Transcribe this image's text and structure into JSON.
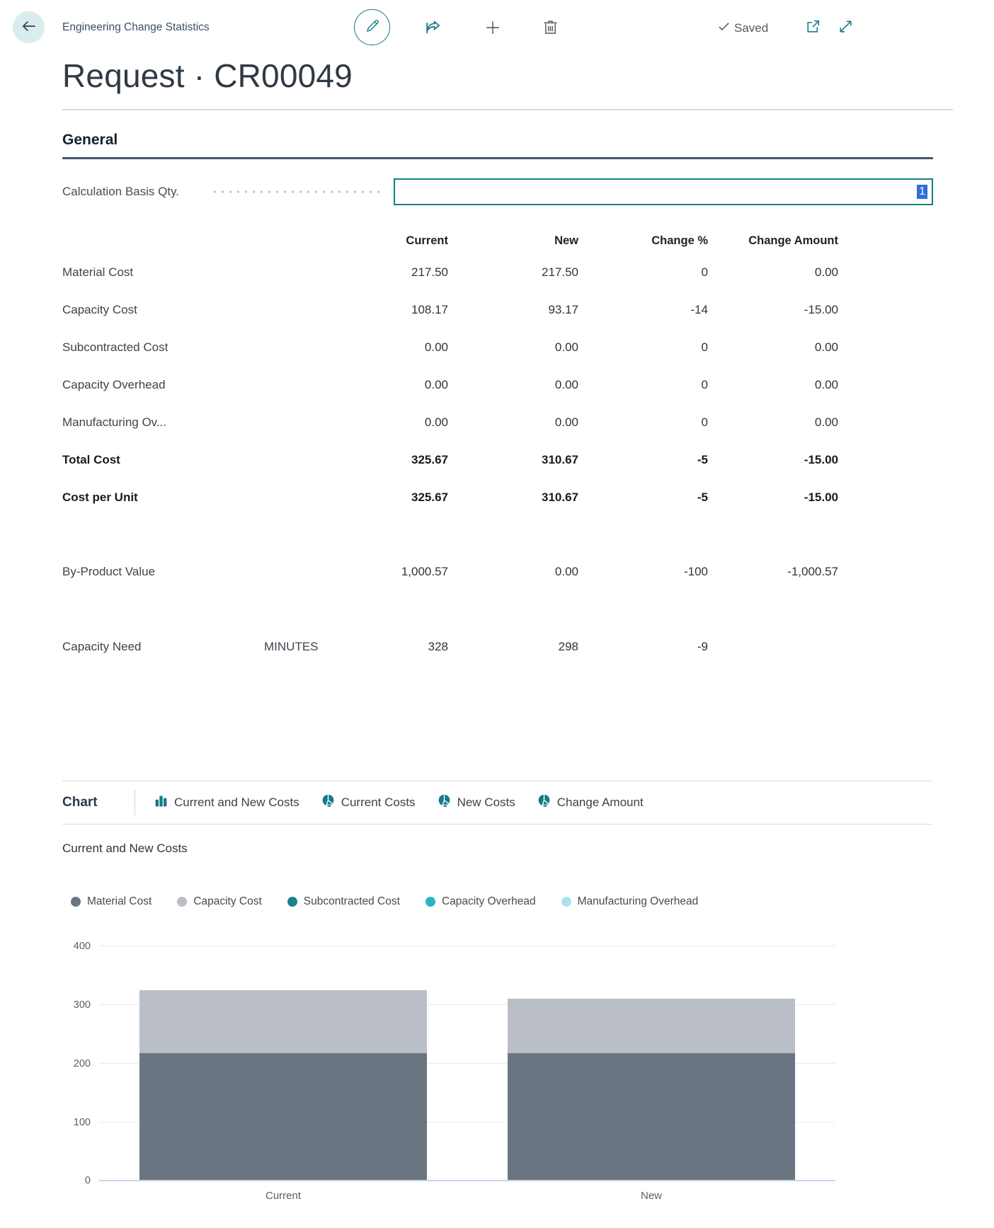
{
  "header": {
    "breadcrumb": "Engineering Change Statistics",
    "saved_label": "Saved",
    "icons": {
      "back": "arrow-left",
      "edit": "pencil",
      "share": "share-arrow",
      "add": "plus",
      "delete": "trash",
      "saved_check": "checkmark",
      "popout": "open-in-new-window",
      "expand": "fullscreen-diagonal-arrows"
    }
  },
  "page_title": "Request · CR00049",
  "general": {
    "section_title": "General",
    "field_label": "Calculation Basis Qty.",
    "field_value": "1"
  },
  "stats_table": {
    "columns": [
      "Current",
      "New",
      "Change %",
      "Change Amount"
    ],
    "rows": [
      {
        "label": "Material Cost",
        "unit": "",
        "current": "217.50",
        "new": "217.50",
        "change_pct": "0",
        "change_amount": "0.00",
        "bold": false
      },
      {
        "label": "Capacity Cost",
        "unit": "",
        "current": "108.17",
        "new": "93.17",
        "change_pct": "-14",
        "change_amount": "-15.00",
        "bold": false
      },
      {
        "label": "Subcontracted Cost",
        "unit": "",
        "current": "0.00",
        "new": "0.00",
        "change_pct": "0",
        "change_amount": "0.00",
        "bold": false
      },
      {
        "label": "Capacity Overhead",
        "unit": "",
        "current": "0.00",
        "new": "0.00",
        "change_pct": "0",
        "change_amount": "0.00",
        "bold": false
      },
      {
        "label": "Manufacturing Ov...",
        "unit": "",
        "current": "0.00",
        "new": "0.00",
        "change_pct": "0",
        "change_amount": "0.00",
        "bold": false
      },
      {
        "label": "Total Cost",
        "unit": "",
        "current": "325.67",
        "new": "310.67",
        "change_pct": "-5",
        "change_amount": "-15.00",
        "bold": true
      },
      {
        "label": "Cost per Unit",
        "unit": "",
        "current": "325.67",
        "new": "310.67",
        "change_pct": "-5",
        "change_amount": "-15.00",
        "bold": true
      },
      {
        "label": "By-Product Value",
        "unit": "",
        "current": "1,000.57",
        "new": "0.00",
        "change_pct": "-100",
        "change_amount": "-1,000.57",
        "bold": false
      },
      {
        "label": "Capacity Need",
        "unit": "MINUTES",
        "current": "328",
        "new": "298",
        "change_pct": "-9",
        "change_amount": "",
        "bold": false
      }
    ]
  },
  "chart_section": {
    "caption": "Chart",
    "tabs": [
      {
        "label": "Current and New Costs",
        "icon": "bar-chart"
      },
      {
        "label": "Current Costs",
        "icon": "pie-chart"
      },
      {
        "label": "New Costs",
        "icon": "pie-chart"
      },
      {
        "label": "Change Amount",
        "icon": "pie-chart"
      }
    ]
  },
  "chart_data": {
    "type": "bar",
    "stacked": true,
    "title": "Current and New Costs",
    "categories": [
      "Current",
      "New"
    ],
    "series": [
      {
        "name": "Material Cost",
        "color": "#6b7582",
        "values": [
          217.5,
          217.5
        ]
      },
      {
        "name": "Capacity Cost",
        "color": "#b9bec7",
        "values": [
          108.17,
          93.17
        ]
      },
      {
        "name": "Subcontracted Cost",
        "color": "#17818d",
        "values": [
          0,
          0
        ]
      },
      {
        "name": "Capacity Overhead",
        "color": "#27b5c4",
        "values": [
          0,
          0
        ]
      },
      {
        "name": "Manufacturing Overhead",
        "color": "#abe2e9",
        "values": [
          0,
          0
        ]
      }
    ],
    "xlabel": "",
    "ylabel": "",
    "ylim": [
      0,
      400
    ],
    "yticks": [
      0,
      100,
      200,
      300,
      400
    ],
    "grid": true,
    "legend_position": "top"
  }
}
